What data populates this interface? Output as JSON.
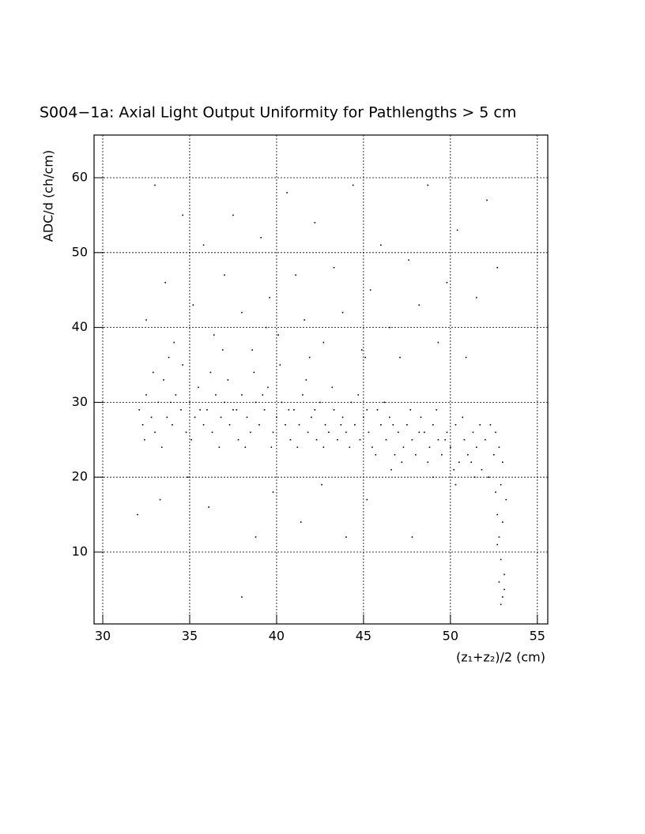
{
  "chart_data": {
    "type": "scatter",
    "title": "S004−1a: Axial Light Output Uniformity for Pathlengths > 5 cm",
    "x_label": "(z₁+z₂)/2 (cm)",
    "y_label": "ADC/d (ch/cm)",
    "color": "#000000",
    "grid": true,
    "xlim": [
      29.5,
      55.6
    ],
    "ylim": [
      0.4,
      65.7
    ],
    "xticks": [
      30,
      35,
      40,
      45,
      50,
      55
    ],
    "yticks": [
      10,
      20,
      30,
      40,
      50,
      60
    ],
    "x": [
      32.1,
      32.3,
      32.5,
      32.8,
      33.0,
      33.2,
      33.5,
      33.7,
      34.0,
      34.2,
      34.5,
      34.8,
      35.0,
      35.3,
      35.5,
      35.8,
      36.0,
      36.3,
      36.5,
      36.8,
      37.0,
      37.3,
      37.5,
      37.8,
      38.0,
      38.3,
      38.5,
      38.8,
      39.0,
      39.3,
      39.5,
      39.8,
      40.0,
      40.3,
      40.5,
      40.8,
      41.0,
      41.3,
      41.5,
      41.8,
      42.0,
      42.3,
      42.5,
      42.8,
      43.0,
      43.3,
      43.5,
      43.8,
      44.0,
      44.3,
      44.5,
      44.8,
      45.0,
      45.3,
      45.5,
      45.8,
      46.0,
      46.3,
      46.5,
      46.8,
      47.0,
      47.3,
      47.5,
      47.8,
      48.0,
      48.3,
      48.5,
      48.8,
      49.0,
      49.3,
      49.5,
      49.8,
      50.0,
      50.3,
      50.5,
      50.8,
      51.0,
      51.3,
      51.5,
      51.8,
      52.0,
      52.3,
      52.5,
      52.8,
      53.0,
      32.4,
      32.9,
      33.4,
      33.9,
      34.6,
      35.1,
      35.6,
      36.2,
      36.7,
      37.2,
      37.7,
      38.2,
      38.7,
      39.2,
      39.7,
      40.2,
      40.7,
      41.2,
      41.7,
      42.2,
      42.7,
      43.2,
      43.7,
      44.2,
      44.7,
      45.2,
      45.7,
      46.2,
      46.7,
      47.2,
      47.7,
      48.2,
      48.7,
      49.2,
      49.7,
      50.2,
      50.7,
      51.2,
      51.7,
      52.2,
      52.6,
      32.5,
      33.0,
      33.6,
      34.1,
      34.6,
      35.2,
      35.8,
      36.4,
      37.0,
      37.5,
      38.0,
      38.6,
      39.1,
      39.6,
      40.1,
      40.6,
      41.1,
      41.6,
      42.2,
      42.7,
      43.3,
      43.8,
      44.4,
      44.9,
      45.4,
      46.0,
      46.5,
      47.1,
      47.6,
      48.2,
      48.7,
      49.3,
      49.8,
      50.4,
      50.9,
      51.5,
      52.1,
      52.7,
      33.8,
      36.9,
      41.9,
      45.1,
      39.4,
      32.0,
      33.3,
      34.9,
      36.1,
      38.0,
      38.8,
      39.8,
      41.4,
      42.6,
      44.0,
      45.2,
      46.6,
      47.8,
      49.0,
      50.3,
      51.4,
      52.6,
      52.7,
      52.8,
      52.9,
      52.8,
      53.0,
      52.9,
      53.1,
      52.7,
      53.0,
      53.2,
      52.9,
      53.1
    ],
    "values": [
      29,
      27,
      31,
      28,
      26,
      30,
      33,
      28,
      27,
      31,
      29,
      26,
      30,
      28,
      32,
      27,
      29,
      26,
      31,
      28,
      30,
      27,
      29,
      25,
      31,
      28,
      26,
      30,
      27,
      29,
      32,
      26,
      28,
      30,
      27,
      25,
      29,
      27,
      31,
      26,
      28,
      25,
      30,
      27,
      26,
      29,
      25,
      28,
      26,
      30,
      27,
      25,
      28,
      26,
      24,
      29,
      27,
      25,
      28,
      23,
      26,
      24,
      27,
      25,
      23,
      28,
      26,
      24,
      27,
      25,
      23,
      26,
      24,
      27,
      22,
      25,
      23,
      26,
      24,
      21,
      25,
      27,
      23,
      24,
      22,
      25,
      34,
      24,
      30,
      35,
      25,
      29,
      34,
      24,
      33,
      29,
      24,
      34,
      31,
      24,
      35,
      29,
      24,
      33,
      29,
      24,
      32,
      27,
      24,
      31,
      29,
      23,
      30,
      27,
      22,
      29,
      26,
      22,
      29,
      25,
      21,
      28,
      22,
      27,
      20,
      26,
      41,
      59,
      46,
      38,
      55,
      43,
      51,
      39,
      47,
      55,
      42,
      37,
      52,
      44,
      39,
      58,
      47,
      41,
      54,
      38,
      48,
      42,
      59,
      37,
      45,
      51,
      40,
      36,
      49,
      43,
      59,
      38,
      46,
      53,
      36,
      44,
      57,
      48,
      36,
      37,
      36,
      36,
      40,
      15,
      17,
      20,
      16,
      4,
      12,
      18,
      14,
      19,
      12,
      17,
      21,
      12,
      20,
      19,
      20,
      18,
      15,
      12,
      9,
      6,
      4,
      3,
      7,
      11,
      14,
      17,
      19,
      5
    ]
  }
}
